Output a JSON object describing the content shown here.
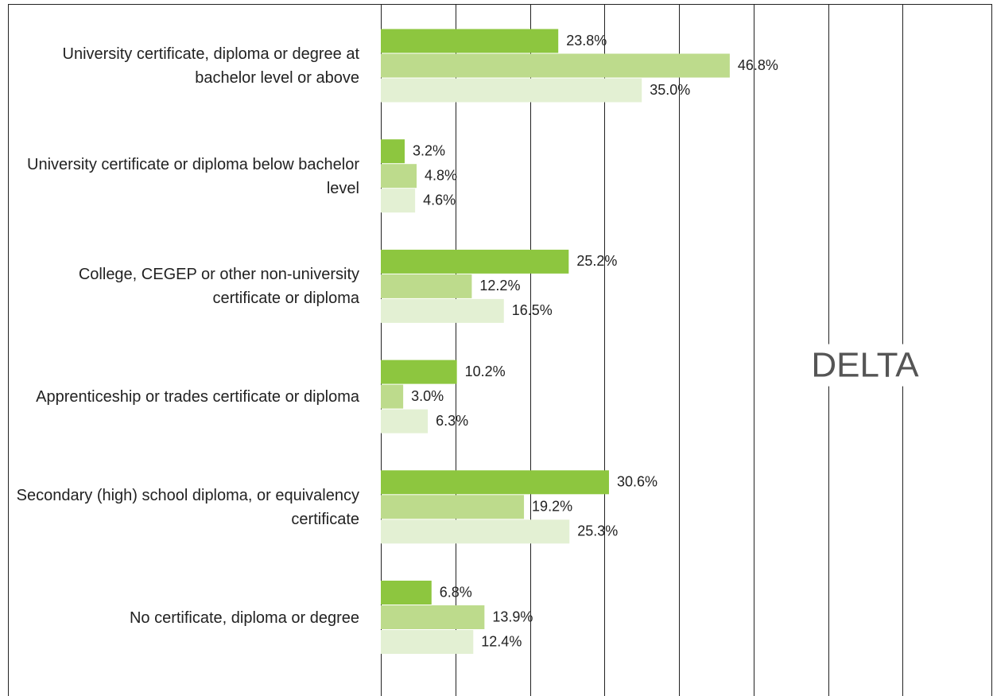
{
  "chart_data": {
    "type": "hbar",
    "categories": [
      "University certificate, diploma or degree at bachelor level or above",
      "University certificate or diploma below bachelor level",
      "College, CEGEP or other non-university certificate or diploma",
      "Apprenticeship or trades certificate or diploma",
      "Secondary (high) school diploma, or equivalency certificate",
      "No certificate, diploma or degree"
    ],
    "series": [
      {
        "color": "#8dc63f",
        "values": [
          23.8,
          3.2,
          25.2,
          10.2,
          30.6,
          6.8
        ],
        "value_labels": [
          "23.8%",
          "3.2%",
          "25.2%",
          "10.2%",
          "30.6%",
          "6.8%"
        ]
      },
      {
        "color": "#bddb8c",
        "values": [
          46.8,
          4.8,
          12.2,
          3.0,
          19.2,
          13.9
        ],
        "value_labels": [
          "46.8%",
          "4.8%",
          "12.2%",
          "3.0%",
          "19.2%",
          "13.9%"
        ]
      },
      {
        "color": "#e3f0d3",
        "values": [
          35.0,
          4.6,
          16.5,
          6.3,
          25.3,
          12.4
        ],
        "value_labels": [
          "35.0%",
          "4.6%",
          "16.5%",
          "6.3%",
          "25.3%",
          "12.4%"
        ]
      }
    ],
    "xlim": [
      0,
      82
    ],
    "xticks": [
      0,
      10,
      20,
      30,
      40,
      50,
      60,
      70
    ],
    "grid": true,
    "annotation": "DELTA"
  }
}
